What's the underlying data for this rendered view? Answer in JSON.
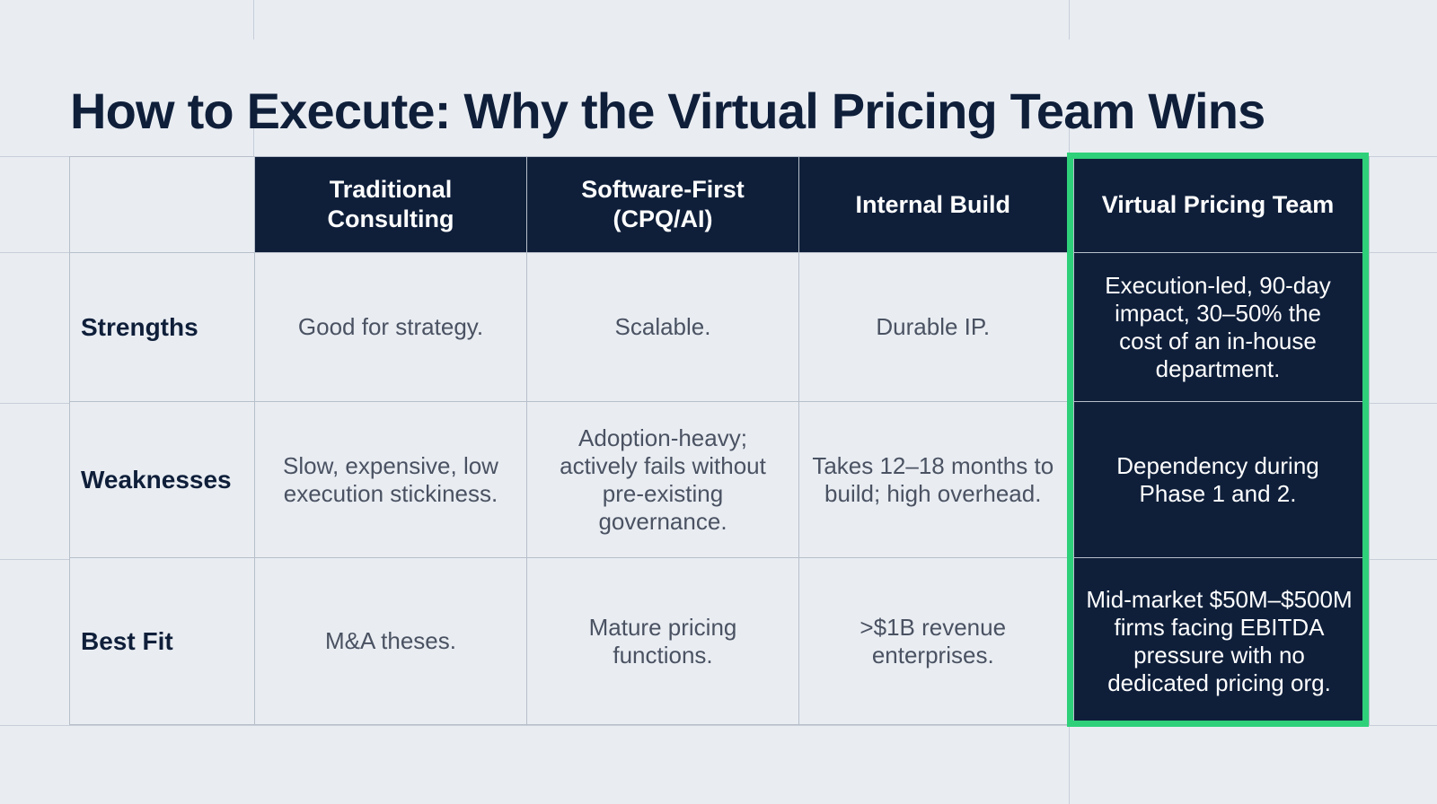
{
  "title": "How to Execute: Why the Virtual Pricing Team Wins",
  "table": {
    "columns": [
      "Traditional Consulting",
      "Software-First (CPQ/AI)",
      "Internal Build",
      "Virtual Pricing Team"
    ],
    "rows": [
      {
        "label": "Strengths",
        "cells": [
          "Good for strategy.",
          "Scalable.",
          "Durable IP.",
          "Execution-led, 90-day impact, 30–50% the cost of an in-house department."
        ]
      },
      {
        "label": "Weaknesses",
        "cells": [
          "Slow, expensive, low execution stickiness.",
          "Adoption-heavy; actively fails without pre-existing governance.",
          "Takes 12–18 months to build; high overhead.",
          "Dependency during Phase 1 and 2."
        ]
      },
      {
        "label": "Best Fit",
        "cells": [
          "M&A theses.",
          "Mature pricing functions.",
          ">$1B revenue enterprises.",
          "Mid-market $50M–$500M firms facing EBITDA pressure with no dedicated pricing org."
        ]
      }
    ]
  },
  "colors": {
    "navy": "#0f1f3a",
    "highlight_green": "#2fd07a",
    "background": "#e9edf2"
  }
}
